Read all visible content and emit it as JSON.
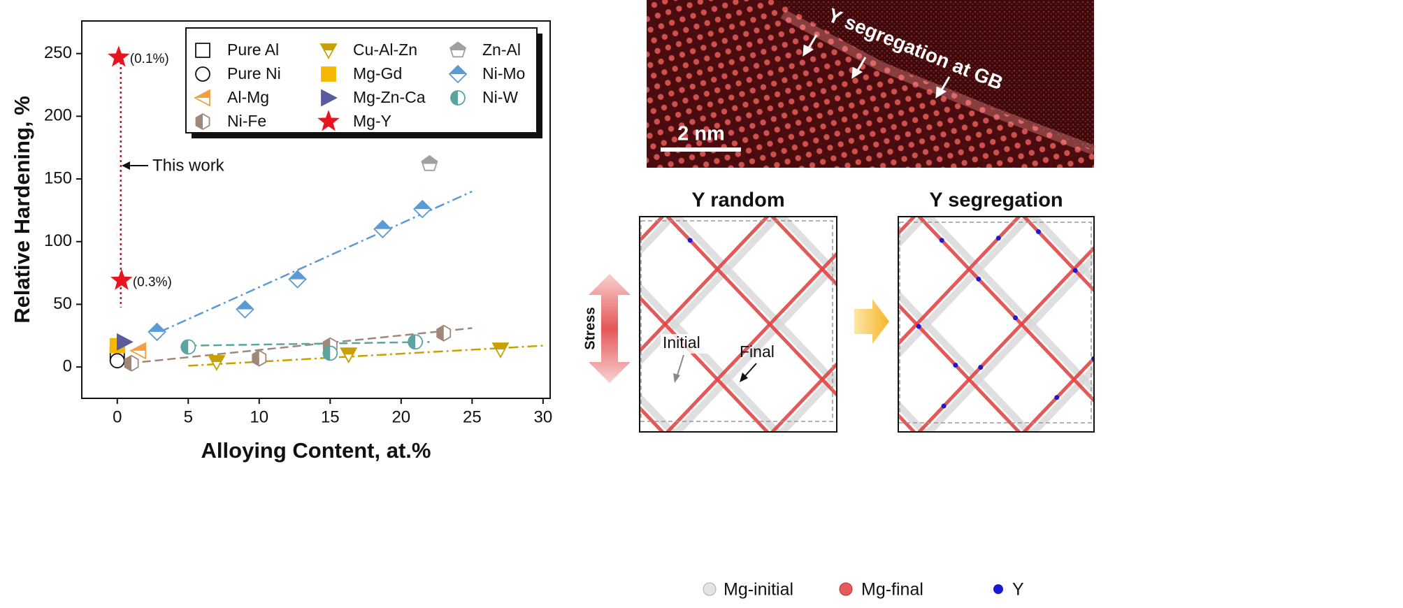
{
  "chart_data": {
    "type": "scatter",
    "xlabel": "Alloying Content, at.%",
    "ylabel": "Relative Hardening, %",
    "xlim": [
      -2.5,
      30.5
    ],
    "ylim": [
      -25,
      276
    ],
    "xticks": [
      0,
      5,
      10,
      15,
      20,
      25,
      30
    ],
    "yticks": [
      0,
      50,
      100,
      150,
      200,
      250
    ],
    "annotations": [
      "(0.1%)",
      "(0.3%)",
      "This work"
    ],
    "series": [
      {
        "name": "Pure Al",
        "color": "#111111",
        "marker": "square",
        "fill": "open",
        "x": [
          0
        ],
        "values": [
          10
        ]
      },
      {
        "name": "Pure Ni",
        "color": "#111111",
        "marker": "circle",
        "fill": "open",
        "x": [
          0
        ],
        "values": [
          5
        ]
      },
      {
        "name": "Al-Mg",
        "color": "#f0a040",
        "marker": "triangle-left",
        "fill": "top",
        "x": [
          1.5
        ],
        "values": [
          13
        ]
      },
      {
        "name": "Ni-Fe",
        "color": "#a08878",
        "marker": "hexagon",
        "fill": "left",
        "x": [
          1,
          10,
          15,
          23
        ],
        "values": [
          3,
          7,
          17,
          27
        ],
        "fit_x": [
          0,
          25
        ],
        "fit_y": [
          2,
          31
        ]
      },
      {
        "name": "Cu-Al-Zn",
        "color": "#c8a000",
        "marker": "triangle-down",
        "fill": "top",
        "x": [
          7,
          16.3,
          27
        ],
        "values": [
          4,
          10,
          14
        ],
        "fit_x": [
          5,
          30
        ],
        "fit_y": [
          1,
          17
        ]
      },
      {
        "name": "Mg-Gd",
        "color": "#f5b800",
        "marker": "square",
        "fill": "full",
        "x": [
          0
        ],
        "values": [
          17
        ]
      },
      {
        "name": "Mg-Zn-Ca",
        "color": "#5a5aa0",
        "marker": "triangle-right",
        "fill": "full",
        "x": [
          0.5
        ],
        "values": [
          20
        ]
      },
      {
        "name": "Mg-Y",
        "color": "#e8141e",
        "marker": "star",
        "fill": "full",
        "x": [
          0.1,
          0.3
        ],
        "values": [
          247,
          69
        ]
      },
      {
        "name": "Zn-Al",
        "color": "#a0a0a0",
        "marker": "pentagon",
        "fill": "top",
        "x": [
          22
        ],
        "values": [
          162
        ]
      },
      {
        "name": "Ni-Mo",
        "color": "#5b9bd5",
        "marker": "diamond",
        "fill": "top",
        "x": [
          2.8,
          9,
          12.7,
          18.7,
          21.5
        ],
        "values": [
          28,
          46,
          70,
          110,
          126
        ],
        "fit_x": [
          3,
          25
        ],
        "fit_y": [
          28,
          140
        ]
      },
      {
        "name": "Ni-W",
        "color": "#5aa5a0",
        "marker": "circle",
        "fill": "left",
        "x": [
          5,
          15,
          21
        ],
        "values": [
          16,
          11,
          20
        ],
        "fit_x": [
          5,
          22
        ],
        "fit_y": [
          17,
          20
        ]
      }
    ]
  },
  "panels": {
    "stem": {
      "caption": "Y segregation at GB",
      "scale_bar": "2 nm"
    },
    "simulation": {
      "titles": [
        "Y random",
        "Y segregation"
      ],
      "stress": "Stress",
      "labels": [
        "Initial",
        "Final"
      ],
      "legend": [
        "Mg-initial",
        "Mg-final",
        "Y"
      ]
    }
  }
}
